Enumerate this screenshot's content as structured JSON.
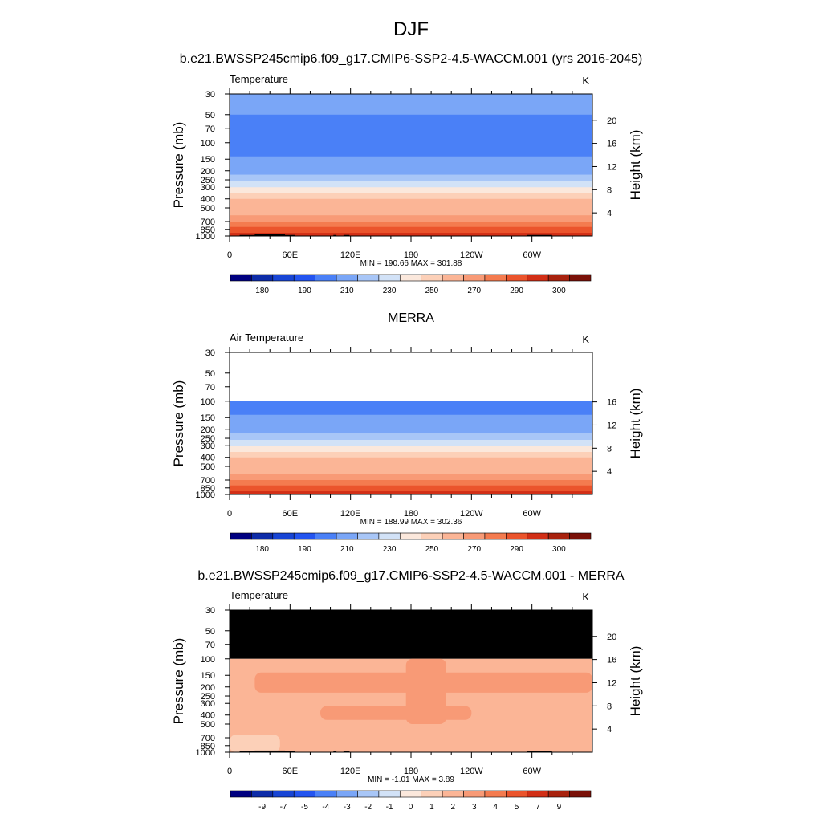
{
  "figure_title": "DJF",
  "chart_data": [
    {
      "type": "heatmap",
      "title": "b.e21.BWSSP245cmip6.f09_g17.CMIP6-SSP2-4.5-WACCM.001 (yrs 2016-2045)",
      "left_label": "Temperature",
      "units": "K",
      "ylabel": "Pressure (mb)",
      "ylabel_right": "Height (km)",
      "x_ticks": [
        "0",
        "60E",
        "120E",
        "180",
        "120W",
        "60W"
      ],
      "y_ticks": [
        30,
        50,
        70,
        100,
        150,
        200,
        250,
        300,
        400,
        500,
        700,
        850,
        1000
      ],
      "height_ticks": [
        4,
        8,
        12,
        16,
        20
      ],
      "ylim": [
        1000,
        30
      ],
      "minmax": "MIN = 190.66  MAX = 301.88",
      "levels_top_to_bottom": [
        {
          "p": 30,
          "v": 210
        },
        {
          "p": 50,
          "v": 200
        },
        {
          "p": 60,
          "v": 195
        },
        {
          "p": 80,
          "v": 192
        },
        {
          "p": 100,
          "v": 192
        },
        {
          "p": 140,
          "v": 198
        },
        {
          "p": 180,
          "v": 205
        },
        {
          "p": 220,
          "v": 212
        },
        {
          "p": 260,
          "v": 220
        },
        {
          "p": 300,
          "v": 228
        },
        {
          "p": 350,
          "v": 238
        },
        {
          "p": 400,
          "v": 245
        },
        {
          "p": 500,
          "v": 255
        },
        {
          "p": 600,
          "v": 262
        },
        {
          "p": 700,
          "v": 270
        },
        {
          "p": 800,
          "v": 278
        },
        {
          "p": 850,
          "v": 283
        },
        {
          "p": 925,
          "v": 290
        },
        {
          "p": 1000,
          "v": 298
        }
      ],
      "missing_above": null,
      "colorbar": {
        "colors": [
          "#000080",
          "#0d2ca8",
          "#1845d5",
          "#2354f0",
          "#4a80f7",
          "#7aa6f7",
          "#a8c6f7",
          "#d2e2f7",
          "#fbe8dc",
          "#fcd0b8",
          "#fbb596",
          "#f89a76",
          "#f47b4f",
          "#eb542c",
          "#d22f16",
          "#a8220e",
          "#7a1108"
        ],
        "labels": [
          "180",
          "190",
          "210",
          "230",
          "250",
          "270",
          "290",
          "300"
        ],
        "bounds": [
          170,
          175,
          180,
          185,
          190,
          200,
          210,
          220,
          230,
          240,
          250,
          260,
          270,
          280,
          290,
          295,
          300,
          305
        ]
      }
    },
    {
      "type": "heatmap",
      "title": "MERRA",
      "left_label": "Air Temperature",
      "units": "K",
      "ylabel": "Pressure (mb)",
      "ylabel_right": "Height (km)",
      "x_ticks": [
        "0",
        "60E",
        "120E",
        "180",
        "120W",
        "60W"
      ],
      "y_ticks": [
        30,
        50,
        70,
        100,
        150,
        200,
        250,
        300,
        400,
        500,
        700,
        850,
        1000
      ],
      "height_ticks": [
        4,
        8,
        12,
        16
      ],
      "ylim": [
        1000,
        30
      ],
      "minmax": "MIN = 188.99  MAX = 302.36",
      "levels_top_to_bottom": [
        {
          "p": 100,
          "v": 192
        },
        {
          "p": 140,
          "v": 198
        },
        {
          "p": 180,
          "v": 205
        },
        {
          "p": 220,
          "v": 212
        },
        {
          "p": 260,
          "v": 220
        },
        {
          "p": 300,
          "v": 228
        },
        {
          "p": 350,
          "v": 238
        },
        {
          "p": 400,
          "v": 245
        },
        {
          "p": 500,
          "v": 255
        },
        {
          "p": 600,
          "v": 262
        },
        {
          "p": 700,
          "v": 270
        },
        {
          "p": 800,
          "v": 278
        },
        {
          "p": 850,
          "v": 283
        },
        {
          "p": 925,
          "v": 290
        },
        {
          "p": 1000,
          "v": 298
        }
      ],
      "missing_above": 100,
      "colorbar": {
        "colors": [
          "#000080",
          "#0d2ca8",
          "#1845d5",
          "#2354f0",
          "#4a80f7",
          "#7aa6f7",
          "#a8c6f7",
          "#d2e2f7",
          "#fbe8dc",
          "#fcd0b8",
          "#fbb596",
          "#f89a76",
          "#f47b4f",
          "#eb542c",
          "#d22f16",
          "#a8220e",
          "#7a1108"
        ],
        "labels": [
          "180",
          "190",
          "210",
          "230",
          "250",
          "270",
          "290",
          "300"
        ],
        "bounds": [
          170,
          175,
          180,
          185,
          190,
          200,
          210,
          220,
          230,
          240,
          250,
          260,
          270,
          280,
          290,
          295,
          300,
          305
        ]
      }
    },
    {
      "type": "heatmap",
      "title": "b.e21.BWSSP245cmip6.f09_g17.CMIP6-SSP2-4.5-WACCM.001 - MERRA",
      "left_label": "Temperature",
      "units": "K",
      "ylabel": "Pressure (mb)",
      "ylabel_right": "Height (km)",
      "x_ticks": [
        "0",
        "60E",
        "120E",
        "180",
        "120W",
        "60W"
      ],
      "y_ticks": [
        30,
        50,
        70,
        100,
        150,
        200,
        250,
        300,
        400,
        500,
        700,
        850,
        1000
      ],
      "height_ticks": [
        4,
        8,
        12,
        16,
        20
      ],
      "ylim": [
        1000,
        30
      ],
      "minmax": "MIN =  -1.01  MAX =   3.89",
      "missing_fill_above": 100,
      "base_value": 1.5,
      "regions": [
        {
          "name": "upper-warm-band",
          "p_top": 140,
          "p_bottom": 230,
          "lon": [
            25,
            360
          ],
          "v": 2.5
        },
        {
          "name": "mid-warm-band",
          "p_top": 320,
          "p_bottom": 450,
          "lon": [
            90,
            240
          ],
          "v": 2.5
        },
        {
          "name": "column-warm",
          "p_top": 100,
          "p_bottom": 500,
          "lon": [
            175,
            215
          ],
          "v": 2.5
        },
        {
          "name": "near-surface-cool",
          "p_top": 650,
          "p_bottom": 1000,
          "lon": [
            0,
            50
          ],
          "v": 0.5
        }
      ],
      "colorbar": {
        "colors": [
          "#000080",
          "#0d2ca8",
          "#1845d5",
          "#2354f0",
          "#4a80f7",
          "#7aa6f7",
          "#a8c6f7",
          "#d2e2f7",
          "#fbe8dc",
          "#fcd0b8",
          "#fbb596",
          "#f89a76",
          "#f47b4f",
          "#eb542c",
          "#d22f16",
          "#a8220e",
          "#7a1108"
        ],
        "labels": [
          "-9",
          "-7",
          "-5",
          "-4",
          "-3",
          "-2",
          "-1",
          "0",
          "1",
          "2",
          "3",
          "4",
          "5",
          "7",
          "9"
        ],
        "bounds": [
          -11,
          -10,
          -8,
          -6,
          -4.5,
          -3.5,
          -2.5,
          -1.5,
          -0.5,
          0.5,
          1.5,
          2.5,
          3.5,
          4.5,
          6,
          8,
          10,
          11
        ]
      }
    }
  ]
}
